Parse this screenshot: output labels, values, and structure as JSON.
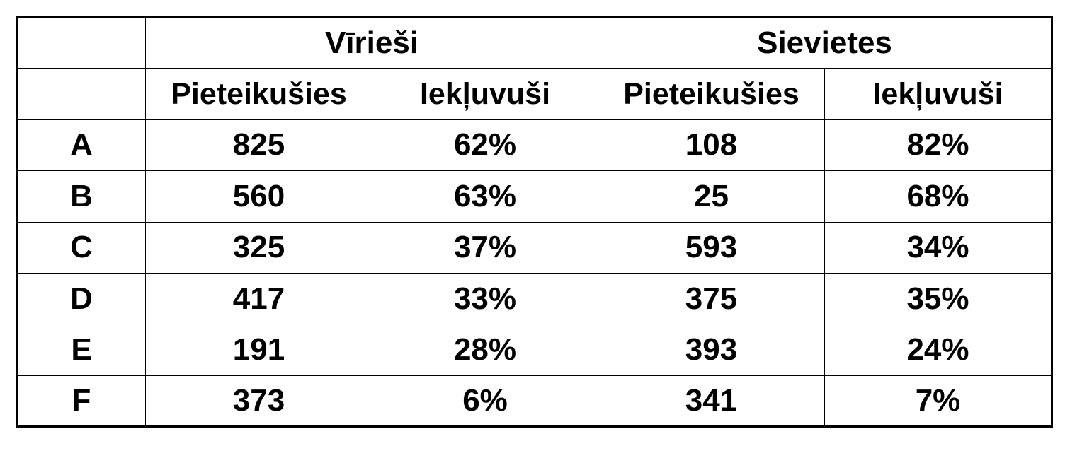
{
  "table": {
    "group_headers": [
      "Vīrieši",
      "Sievietes"
    ],
    "sub_headers": [
      "Pieteikušies",
      "Iekļuvuši",
      "Pieteikušies",
      "Iekļuvuši"
    ],
    "rows": [
      [
        "A",
        "825",
        "62%",
        "108",
        "82%"
      ],
      [
        "B",
        "560",
        "63%",
        "25",
        "68%"
      ],
      [
        "C",
        "325",
        "37%",
        "593",
        "34%"
      ],
      [
        "D",
        "417",
        "33%",
        "375",
        "35%"
      ],
      [
        "E",
        "191",
        "28%",
        "393",
        "24%"
      ],
      [
        "F",
        "373",
        "6%",
        "341",
        "7%"
      ]
    ]
  }
}
